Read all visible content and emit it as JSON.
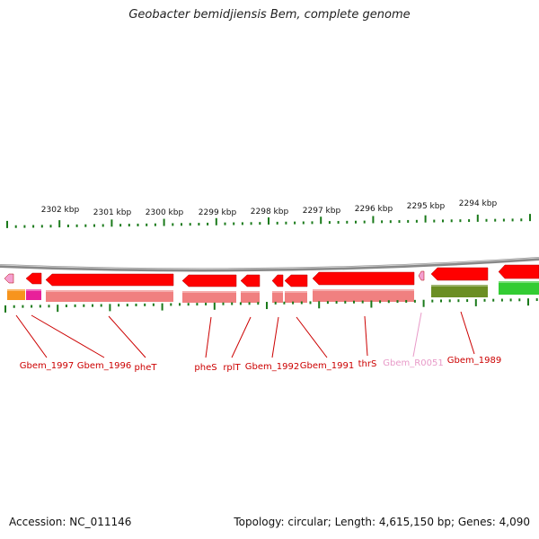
{
  "title": "Geobacter bemidjiensis Bem, complete genome",
  "footer": {
    "accession": "Accession: NC_011146",
    "summary": "Topology: circular; Length: 4,615,150 bp; Genes: 4,090"
  },
  "ruler": {
    "tick_labels": [
      "2302 kbp",
      "2301 kbp",
      "2300 kbp",
      "2299 kbp",
      "2298 kbp",
      "2297 kbp",
      "2296 kbp",
      "2295 kbp",
      "2294 kbp"
    ]
  },
  "genes": [
    {
      "name": "Gbem_1997",
      "color": "#cc0000"
    },
    {
      "name": "Gbem_1996",
      "color": "#cc0000"
    },
    {
      "name": "pheT",
      "color": "#cc0000"
    },
    {
      "name": "pheS",
      "color": "#cc0000"
    },
    {
      "name": "rplT",
      "color": "#cc0000"
    },
    {
      "name": "Gbem_1992",
      "color": "#cc0000"
    },
    {
      "name": "Gbem_1991",
      "color": "#cc0000"
    },
    {
      "name": "thrS",
      "color": "#cc0000"
    },
    {
      "name": "Gbem_R0051",
      "color": "#e89ac8"
    },
    {
      "name": "Gbem_1989",
      "color": "#cc0000"
    }
  ],
  "colors": {
    "cds": "#ff0000",
    "cds_light": "#f08080",
    "rna": "#f4a0d0",
    "tick": "#1a7a1a",
    "backbone": "#888888",
    "category_orange": "#f7941d",
    "category_magenta": "#e8209a",
    "category_olive": "#6b8e23",
    "category_green": "#33cc33"
  }
}
